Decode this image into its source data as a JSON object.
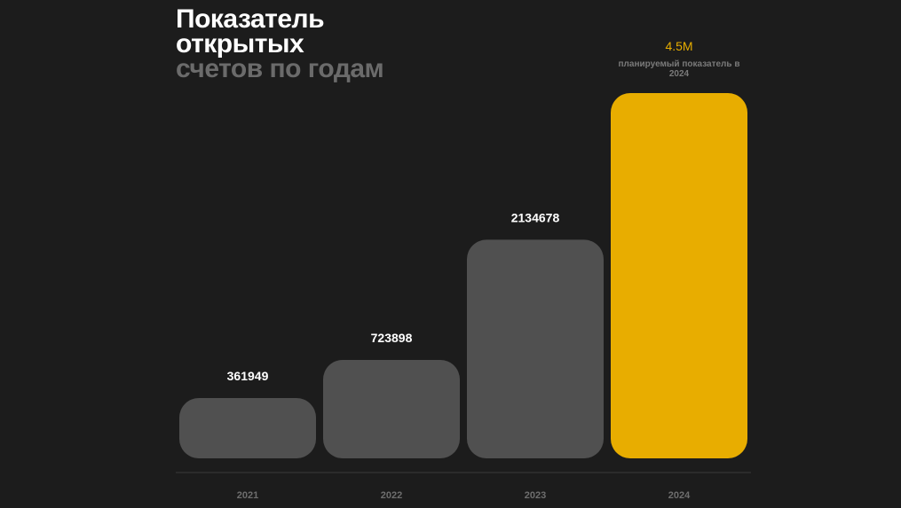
{
  "title": {
    "line1": "Показатель открытых",
    "line2": "счетов по годам"
  },
  "colors": {
    "background": "#1c1c1c",
    "bar": "#505050",
    "highlight": "#e8ad00",
    "axis": "#3a3a3a"
  },
  "chart_data": {
    "type": "bar",
    "title": "Показатель открытых счетов по годам",
    "categories": [
      "2021",
      "2022",
      "2023",
      "2024"
    ],
    "values": [
      361949,
      723898,
      2134678,
      4500000
    ],
    "value_labels": [
      "361949",
      "723898",
      "2134678",
      "4.5M"
    ],
    "highlight_index": 3,
    "annotations": [
      {
        "category": "2024",
        "text": "планируемый показатель в 2024"
      }
    ],
    "grid": false,
    "legend": "none"
  }
}
